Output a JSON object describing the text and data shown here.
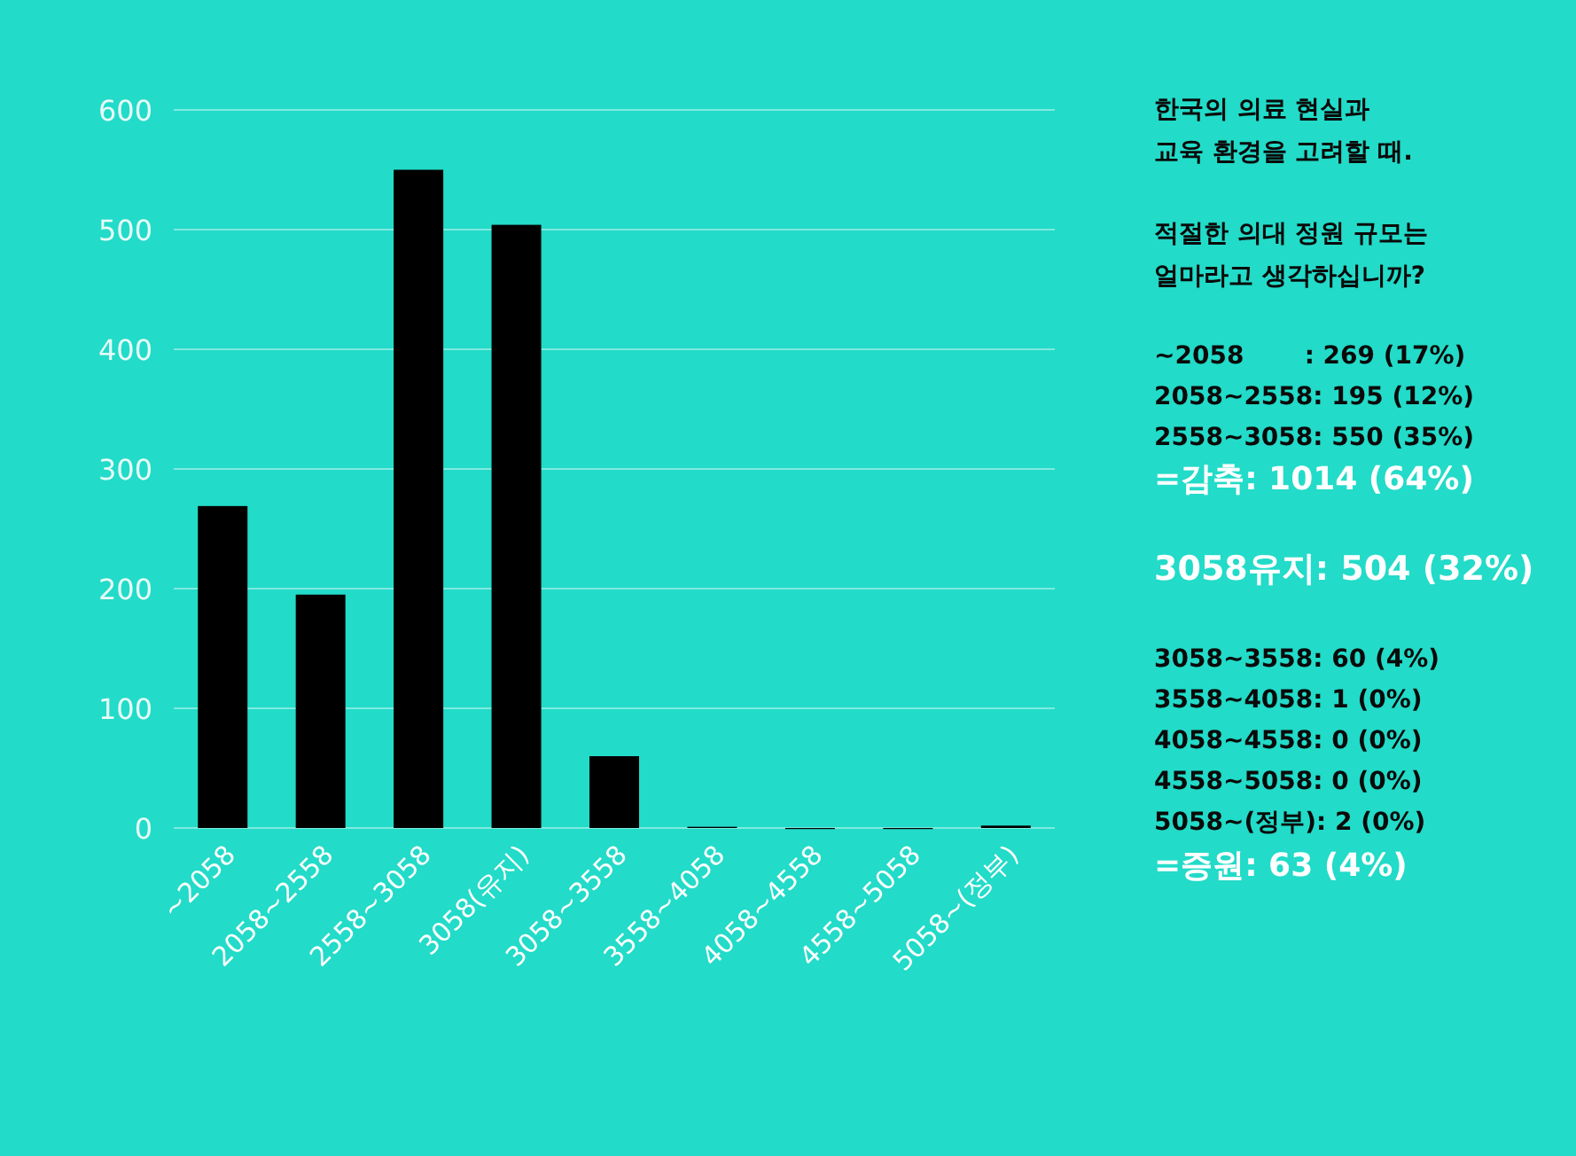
{
  "chart_data": {
    "type": "bar",
    "categories": [
      "~2058",
      "2058~2558",
      "2558~3058",
      "3058(유지)",
      "3058~3558",
      "3558~4058",
      "4058~4558",
      "4558~5058",
      "5058~(정부)"
    ],
    "values": [
      269,
      195,
      550,
      504,
      60,
      1,
      0,
      0,
      2
    ],
    "color": "#000000",
    "ylim": [
      0,
      600
    ],
    "yticks": [
      0,
      100,
      200,
      300,
      400,
      500,
      600
    ],
    "grid": "y",
    "annotations": [
      "한국의 의료 현실과",
      "교육 환경을 고려할 때.",
      "적절한 의대 정원 규모는",
      "얼마라고 생각하십니까?",
      "~2058       : 269 (17%)",
      "2058~2558: 195 (12%)",
      "2558~3058: 550 (35%)",
      "=감축: 1014 (64%)",
      "3058유지: 504 (32%)",
      "3058~3558: 60 (4%)",
      "3558~4058: 1 (0%)",
      "4058~4558: 0 (0%)",
      "4558~5058: 0 (0%)",
      "5058~(정부): 2 (0%)",
      "=증원: 63 (4%)"
    ]
  }
}
